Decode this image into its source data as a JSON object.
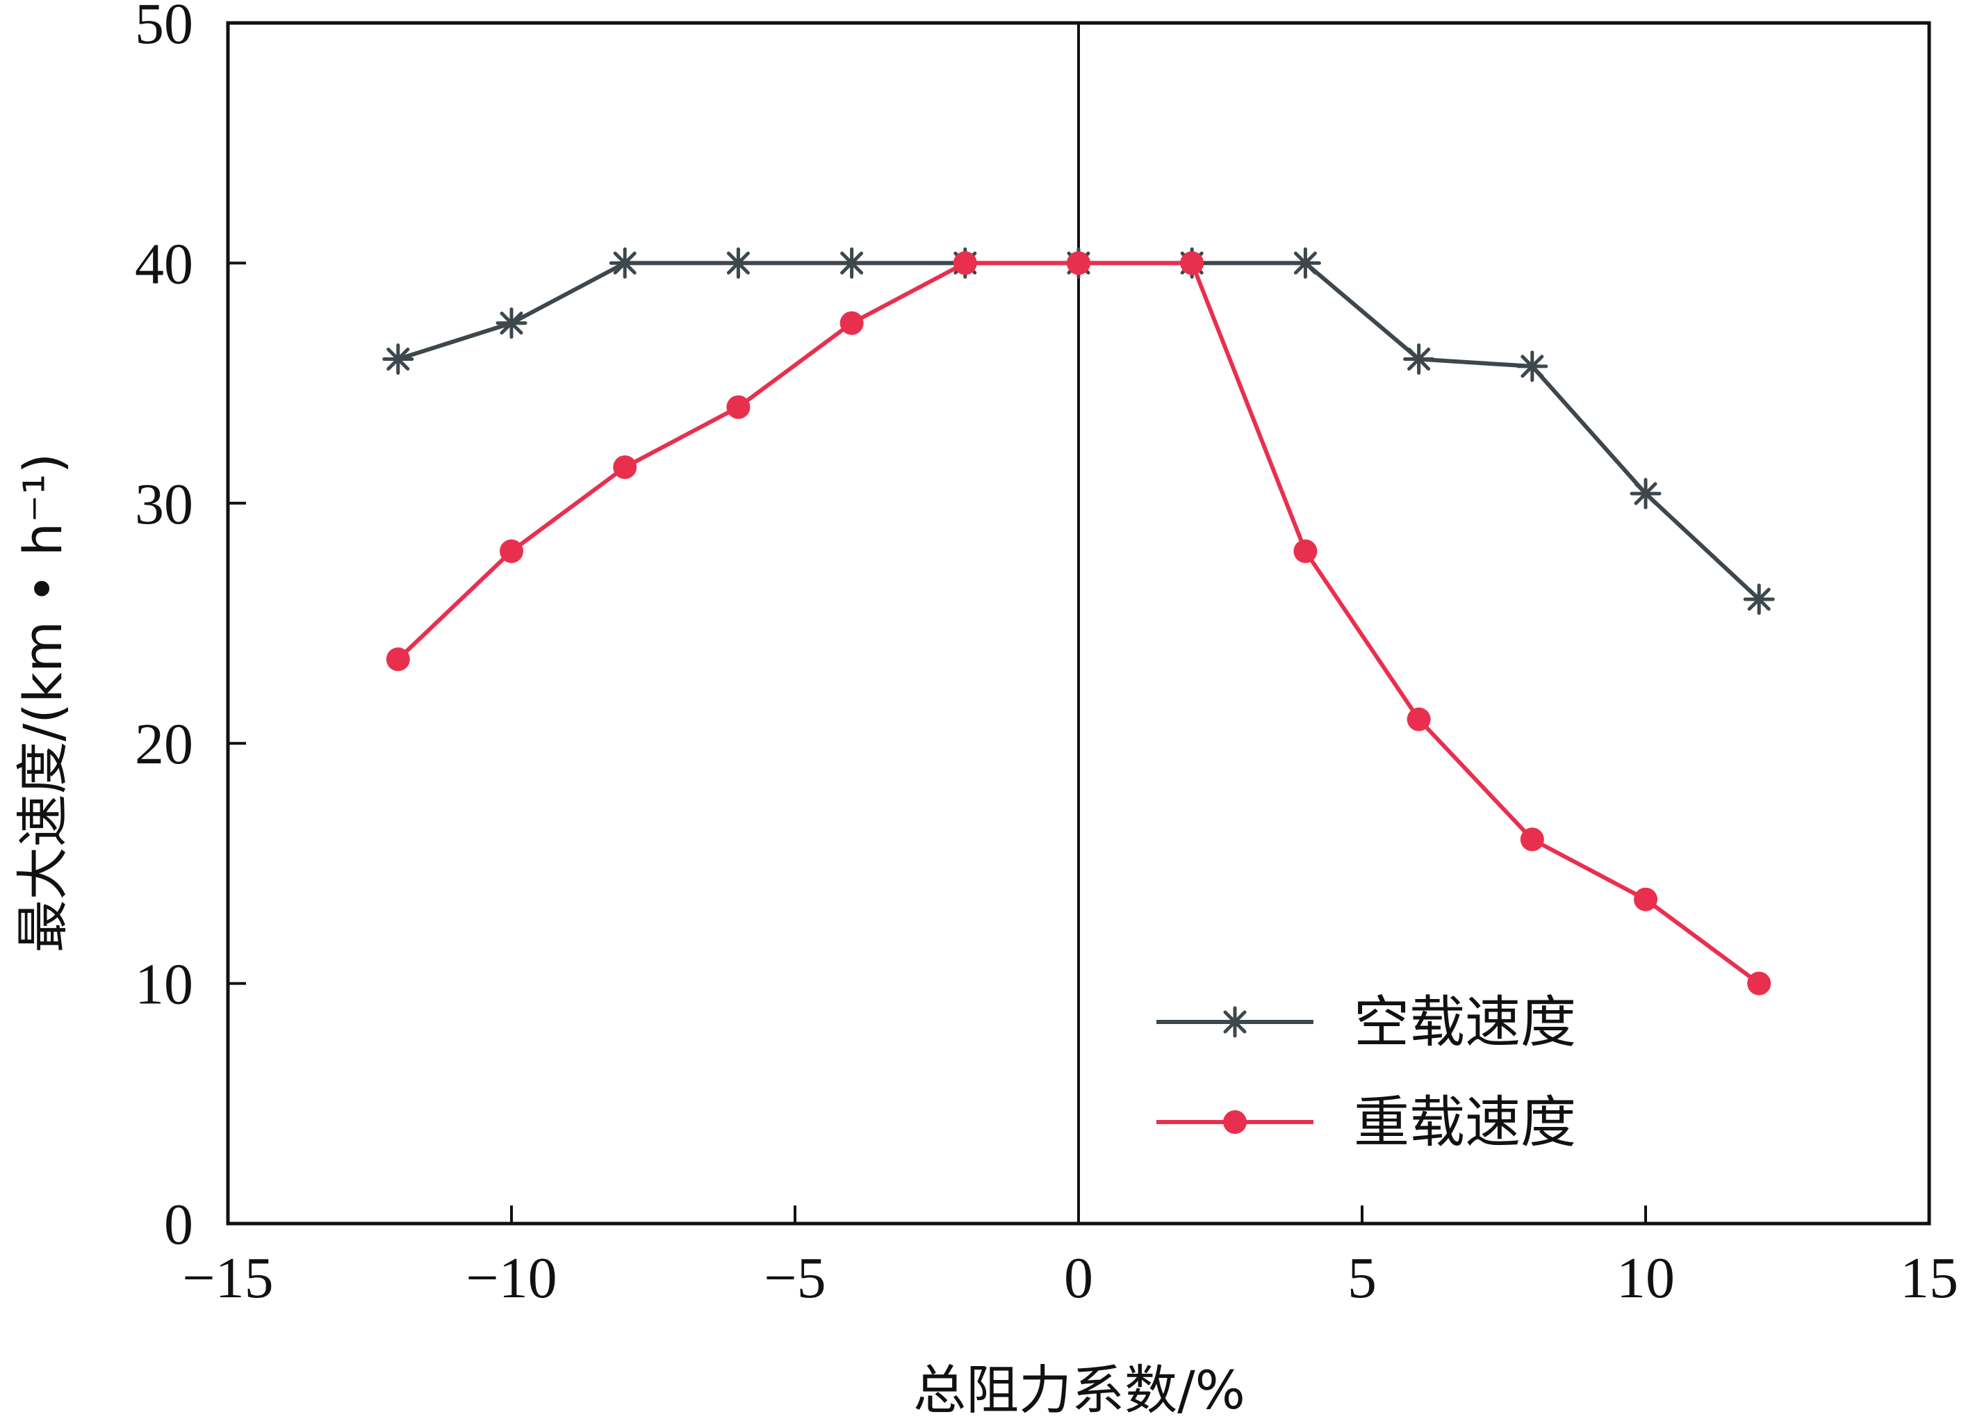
{
  "chart_data": {
    "type": "line",
    "xlabel": "总阻力系数/%",
    "ylabel": "最大速度/(km • h⁻¹)",
    "xlim": [
      -15,
      15
    ],
    "ylim": [
      0,
      50
    ],
    "xticks": [
      "−15",
      "−10",
      "−5",
      "0",
      "5",
      "10",
      "15"
    ],
    "xtick_values": [
      -15,
      -10,
      -5,
      0,
      5,
      10,
      15
    ],
    "yticks": [
      "0",
      "10",
      "20",
      "30",
      "40",
      "50"
    ],
    "ytick_values": [
      0,
      10,
      20,
      30,
      40,
      50
    ],
    "vertical_reference_line_x": 0,
    "grid": false,
    "legend_position": "bottom-right",
    "series": [
      {
        "name": "空载速度",
        "color": "#3d474c",
        "marker": "asterisk",
        "x": [
          -12,
          -10,
          -8,
          -6,
          -4,
          -2,
          0,
          2,
          4,
          6,
          8,
          10,
          12
        ],
        "y": [
          36,
          37.5,
          40,
          40,
          40,
          40,
          40,
          40,
          40,
          36,
          35.7,
          30.4,
          26
        ]
      },
      {
        "name": "重载速度",
        "color": "#e8304e",
        "marker": "circle",
        "x": [
          -12,
          -10,
          -8,
          -6,
          -4,
          -2,
          0,
          2,
          4,
          6,
          8,
          10,
          12
        ],
        "y": [
          23.5,
          28,
          31.5,
          34,
          37.5,
          40,
          40,
          40,
          28,
          21,
          16,
          13.5,
          10
        ]
      }
    ]
  }
}
